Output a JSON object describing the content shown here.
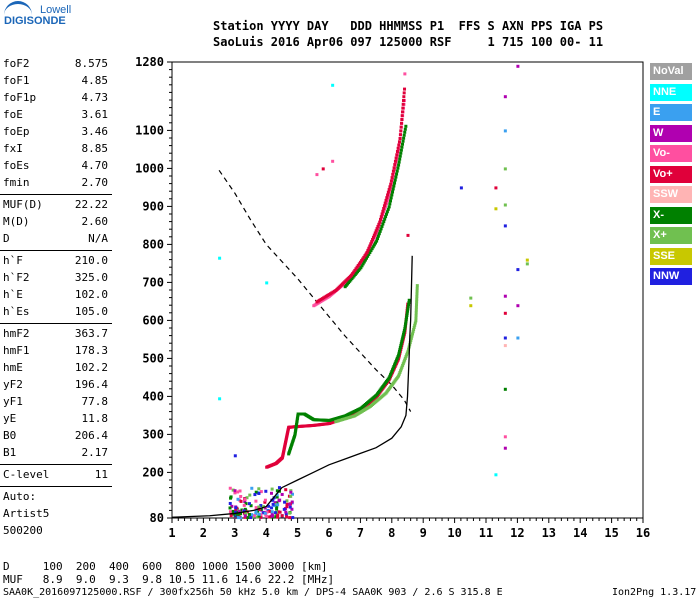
{
  "logo": {
    "line1": "Lowell",
    "line2": "DIGISONDE"
  },
  "header": {
    "row1": "Station YYYY DAY   DDD HHMMSS P1  FFS S AXN PPS IGA PS",
    "row2": "SaoLuis 2016 Apr06 097 125000 RSF     1 715 100 00- 11"
  },
  "params_a": [
    {
      "k": "foF2",
      "v": "8.575"
    },
    {
      "k": "foF1",
      "v": "4.85"
    },
    {
      "k": "foF1p",
      "v": "4.73"
    },
    {
      "k": "foE",
      "v": "3.61"
    },
    {
      "k": "foEp",
      "v": "3.46"
    },
    {
      "k": "fxI",
      "v": "8.85"
    },
    {
      "k": "foEs",
      "v": "4.70"
    },
    {
      "k": "fmin",
      "v": "2.70"
    }
  ],
  "params_b": [
    {
      "k": "MUF(D)",
      "v": "22.22"
    },
    {
      "k": "M(D)",
      "v": "2.60"
    },
    {
      "k": "D",
      "v": "N/A"
    }
  ],
  "params_c": [
    {
      "k": "h`F",
      "v": "210.0"
    },
    {
      "k": "h`F2",
      "v": "325.0"
    },
    {
      "k": "h`E",
      "v": "102.0"
    },
    {
      "k": "h`Es",
      "v": "105.0"
    }
  ],
  "params_d": [
    {
      "k": "hmF2",
      "v": "363.7"
    },
    {
      "k": "hmF1",
      "v": "178.3"
    },
    {
      "k": "hmE",
      "v": "102.2"
    },
    {
      "k": "yF2",
      "v": "196.4"
    },
    {
      "k": "yF1",
      "v": "77.8"
    },
    {
      "k": "yE",
      "v": "11.8"
    },
    {
      "k": "B0",
      "v": "206.4"
    },
    {
      "k": "B1",
      "v": "2.17"
    }
  ],
  "clevel": {
    "k": "C-level",
    "v": "11"
  },
  "auto": [
    "Auto:",
    "Artist5",
    "500200"
  ],
  "legend": [
    {
      "label": "NoVal",
      "color": "#a0a0a0"
    },
    {
      "label": "NNE",
      "color": "#00ffff"
    },
    {
      "label": "E",
      "color": "#3aa0f0"
    },
    {
      "label": "W",
      "color": "#b000b0"
    },
    {
      "label": "Vo-",
      "color": "#ff4fa0"
    },
    {
      "label": "Vo+",
      "color": "#e0003a"
    },
    {
      "label": "SSW",
      "color": "#ffb4b4"
    },
    {
      "label": "X-",
      "color": "#008000"
    },
    {
      "label": "X+",
      "color": "#70c050"
    },
    {
      "label": "SSE",
      "color": "#c8c800"
    },
    {
      "label": "NNW",
      "color": "#2020e0"
    }
  ],
  "footer": {
    "row_d": "D     100  200  400  600  800 1000 1500 3000 [km]",
    "row_muf": "MUF   8.9  9.0  9.3  9.8 10.5 11.6 14.6 22.2 [MHz]",
    "info": "SAA0K_2016097125000.RSF / 300fx256h 50 kHz 5.0 km / DPS-4 SAA0K 903 / 2.6 S 315.8 E",
    "version": "Ion2Png 1.3.17"
  },
  "chart_data": {
    "type": "scatter",
    "xlim": [
      1,
      16
    ],
    "ylim": [
      80,
      1280
    ],
    "x_ticks": [
      1,
      2,
      3,
      4,
      5,
      6,
      7,
      8,
      9,
      10,
      11,
      12,
      13,
      14,
      15,
      16
    ],
    "y_ticks": [
      80,
      200,
      300,
      400,
      500,
      600,
      700,
      800,
      900,
      1000,
      1100,
      1280
    ],
    "series": [
      {
        "name": "Vo+",
        "color": "#e0003a",
        "kind": "trace",
        "points": [
          [
            4.0,
            215
          ],
          [
            4.3,
            225
          ],
          [
            4.5,
            240
          ],
          [
            4.6,
            280
          ],
          [
            4.7,
            320
          ],
          [
            5.0,
            322
          ],
          [
            5.5,
            325
          ],
          [
            6.0,
            330
          ],
          [
            6.5,
            345
          ],
          [
            7.0,
            365
          ],
          [
            7.5,
            400
          ],
          [
            7.9,
            445
          ],
          [
            8.2,
            500
          ],
          [
            8.4,
            570
          ],
          [
            8.5,
            650
          ]
        ]
      },
      {
        "name": "X-",
        "color": "#008000",
        "kind": "trace",
        "points": [
          [
            4.7,
            250
          ],
          [
            4.9,
            300
          ],
          [
            5.0,
            355
          ],
          [
            5.2,
            355
          ],
          [
            5.5,
            340
          ],
          [
            6.0,
            338
          ],
          [
            6.5,
            350
          ],
          [
            7.0,
            370
          ],
          [
            7.5,
            405
          ],
          [
            7.9,
            450
          ],
          [
            8.2,
            510
          ],
          [
            8.4,
            580
          ],
          [
            8.55,
            660
          ]
        ]
      },
      {
        "name": "X+",
        "color": "#70c050",
        "kind": "trace",
        "points": [
          [
            6.2,
            335
          ],
          [
            6.8,
            350
          ],
          [
            7.3,
            375
          ],
          [
            7.8,
            410
          ],
          [
            8.2,
            455
          ],
          [
            8.5,
            520
          ],
          [
            8.75,
            600
          ],
          [
            8.8,
            700
          ]
        ]
      },
      {
        "name": "Vo-",
        "color": "#ff4fa0",
        "kind": "trace",
        "points": [
          [
            5.5,
            640
          ],
          [
            6.0,
            665
          ],
          [
            6.5,
            700
          ],
          [
            7.0,
            750
          ],
          [
            7.5,
            830
          ],
          [
            7.9,
            930
          ],
          [
            8.2,
            1050
          ],
          [
            8.4,
            1190
          ]
        ]
      },
      {
        "name": "X-",
        "color": "#008000",
        "kind": "trace",
        "points": [
          [
            6.5,
            690
          ],
          [
            7.0,
            740
          ],
          [
            7.5,
            810
          ],
          [
            7.9,
            900
          ],
          [
            8.2,
            1010
          ],
          [
            8.45,
            1120
          ]
        ]
      },
      {
        "name": "Vo+",
        "color": "#e0003a",
        "kind": "trace",
        "points": [
          [
            5.6,
            650
          ],
          [
            6.2,
            680
          ],
          [
            6.7,
            720
          ],
          [
            7.2,
            780
          ],
          [
            7.6,
            860
          ],
          [
            7.95,
            960
          ],
          [
            8.25,
            1080
          ],
          [
            8.4,
            1220
          ]
        ]
      }
    ],
    "scatter_points": [
      {
        "x": 2.5,
        "y": 765,
        "color": "#00ffff"
      },
      {
        "x": 2.5,
        "y": 395,
        "color": "#00ffff"
      },
      {
        "x": 4.0,
        "y": 700,
        "color": "#00ffff"
      },
      {
        "x": 5.6,
        "y": 985,
        "color": "#ff4fa0"
      },
      {
        "x": 6.1,
        "y": 1020,
        "color": "#ff4fa0"
      },
      {
        "x": 5.8,
        "y": 1000,
        "color": "#e0003a"
      },
      {
        "x": 10.2,
        "y": 950,
        "color": "#2020e0"
      },
      {
        "x": 11.3,
        "y": 950,
        "color": "#e0003a"
      },
      {
        "x": 11.6,
        "y": 1190,
        "color": "#b000b0"
      },
      {
        "x": 11.6,
        "y": 1100,
        "color": "#3aa0f0"
      },
      {
        "x": 11.6,
        "y": 1000,
        "color": "#70c050"
      },
      {
        "x": 11.6,
        "y": 850,
        "color": "#2020e0"
      },
      {
        "x": 11.3,
        "y": 895,
        "color": "#c8c800"
      },
      {
        "x": 11.6,
        "y": 905,
        "color": "#70c050"
      },
      {
        "x": 12.0,
        "y": 1270,
        "color": "#b000b0"
      },
      {
        "x": 12.0,
        "y": 735,
        "color": "#2020e0"
      },
      {
        "x": 12.0,
        "y": 640,
        "color": "#b000b0"
      },
      {
        "x": 12.3,
        "y": 750,
        "color": "#70c050"
      },
      {
        "x": 12.3,
        "y": 760,
        "color": "#c8c800"
      },
      {
        "x": 10.5,
        "y": 660,
        "color": "#70c050"
      },
      {
        "x": 10.5,
        "y": 640,
        "color": "#c8c800"
      },
      {
        "x": 11.6,
        "y": 665,
        "color": "#b000b0"
      },
      {
        "x": 11.6,
        "y": 620,
        "color": "#e0003a"
      },
      {
        "x": 11.6,
        "y": 555,
        "color": "#2020e0"
      },
      {
        "x": 11.6,
        "y": 535,
        "color": "#ffb4b4"
      },
      {
        "x": 11.6,
        "y": 420,
        "color": "#008000"
      },
      {
        "x": 11.6,
        "y": 295,
        "color": "#ff4fa0"
      },
      {
        "x": 11.6,
        "y": 265,
        "color": "#b000b0"
      },
      {
        "x": 11.3,
        "y": 195,
        "color": "#00ffff"
      },
      {
        "x": 6.1,
        "y": 1220,
        "color": "#00ffff"
      },
      {
        "x": 8.4,
        "y": 1250,
        "color": "#ff4fa0"
      },
      {
        "x": 8.5,
        "y": 825,
        "color": "#e0003a"
      },
      {
        "x": 3.0,
        "y": 245,
        "color": "#2020e0"
      },
      {
        "x": 12.0,
        "y": 555,
        "color": "#3aa0f0"
      }
    ],
    "es_cluster": {
      "x": [
        2.8,
        4.8
      ],
      "y": [
        85,
        165
      ],
      "colors": [
        "#2020e0",
        "#b000b0",
        "#e0003a",
        "#008000",
        "#ff4fa0",
        "#3aa0f0",
        "#70c050"
      ]
    },
    "density_profile": [
      [
        1.0,
        82
      ],
      [
        2.2,
        86
      ],
      [
        3.0,
        92
      ],
      [
        3.6,
        100
      ],
      [
        4.0,
        110
      ],
      [
        4.5,
        160
      ],
      [
        5.0,
        180
      ],
      [
        5.5,
        200
      ],
      [
        6.0,
        220
      ],
      [
        6.5,
        235
      ],
      [
        7.0,
        250
      ],
      [
        7.5,
        265
      ],
      [
        8.0,
        290
      ],
      [
        8.3,
        320
      ],
      [
        8.45,
        350
      ],
      [
        8.5,
        400
      ],
      [
        8.55,
        500
      ],
      [
        8.575,
        560
      ],
      [
        8.6,
        600
      ],
      [
        8.65,
        770
      ]
    ],
    "extrapolated_profile": [
      [
        2.5,
        995
      ],
      [
        3.0,
        935
      ],
      [
        3.5,
        865
      ],
      [
        4.0,
        800
      ],
      [
        4.5,
        755
      ],
      [
        5.0,
        710
      ],
      [
        5.5,
        660
      ],
      [
        6.0,
        610
      ],
      [
        6.5,
        560
      ],
      [
        7.0,
        515
      ],
      [
        7.5,
        470
      ],
      [
        8.0,
        430
      ],
      [
        8.4,
        390
      ],
      [
        8.6,
        360
      ]
    ]
  }
}
